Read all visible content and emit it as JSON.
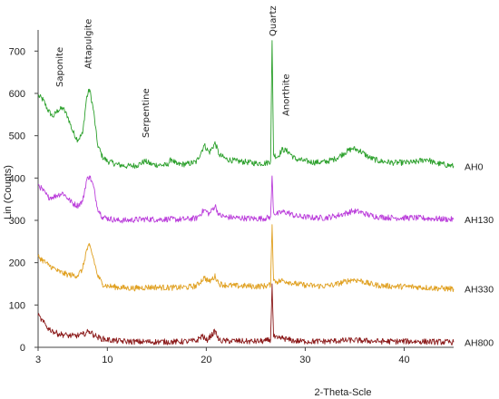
{
  "chart_data": {
    "type": "line",
    "xlabel": "2-Theta-Scle",
    "ylabel": "Lin (Counts)",
    "xlim": [
      3,
      45
    ],
    "ylim": [
      0,
      750
    ],
    "x_ticks": [
      "3",
      "10",
      "20",
      "30",
      "40"
    ],
    "y_ticks": [
      "0",
      "100",
      "200",
      "300",
      "400",
      "500",
      "600",
      "700"
    ],
    "grid": false,
    "series": [
      {
        "name": "AH0",
        "color": "#2ca02c",
        "points": [
          [
            3,
            595
          ],
          [
            3.5,
            585
          ],
          [
            4,
            560
          ],
          [
            4.5,
            545
          ],
          [
            5,
            560
          ],
          [
            5.5,
            565
          ],
          [
            6,
            545
          ],
          [
            6.5,
            510
          ],
          [
            7,
            490
          ],
          [
            7.5,
            505
          ],
          [
            7.9,
            590
          ],
          [
            8.2,
            610
          ],
          [
            8.6,
            560
          ],
          [
            9,
            480
          ],
          [
            9.5,
            450
          ],
          [
            10,
            440
          ],
          [
            11,
            432
          ],
          [
            12,
            428
          ],
          [
            13,
            430
          ],
          [
            13.8,
            440
          ],
          [
            14.5,
            432
          ],
          [
            16,
            430
          ],
          [
            16.5,
            445
          ],
          [
            17,
            432
          ],
          [
            18,
            433
          ],
          [
            19,
            438
          ],
          [
            19.8,
            478
          ],
          [
            20.3,
            460
          ],
          [
            20.9,
            483
          ],
          [
            21.3,
            455
          ],
          [
            22,
            445
          ],
          [
            23,
            440
          ],
          [
            24,
            438
          ],
          [
            25,
            435
          ],
          [
            26,
            435
          ],
          [
            26.5,
            440
          ],
          [
            26.65,
            725
          ],
          [
            26.8,
            455
          ],
          [
            27.2,
            450
          ],
          [
            27.7,
            468
          ],
          [
            28.3,
            462
          ],
          [
            29,
            445
          ],
          [
            30,
            440
          ],
          [
            31,
            437
          ],
          [
            32,
            438
          ],
          [
            33,
            445
          ],
          [
            34,
            460
          ],
          [
            34.8,
            470
          ],
          [
            35.5,
            465
          ],
          [
            36.5,
            448
          ],
          [
            37.5,
            440
          ],
          [
            39,
            436
          ],
          [
            41,
            437
          ],
          [
            42.3,
            445
          ],
          [
            43,
            436
          ],
          [
            45,
            428
          ]
        ]
      },
      {
        "name": "AH130",
        "color": "#bb3fdb",
        "points": [
          [
            3,
            385
          ],
          [
            3.5,
            370
          ],
          [
            4,
            355
          ],
          [
            4.5,
            355
          ],
          [
            5,
            360
          ],
          [
            5.5,
            365
          ],
          [
            6,
            352
          ],
          [
            6.5,
            340
          ],
          [
            7,
            335
          ],
          [
            7.5,
            345
          ],
          [
            7.9,
            395
          ],
          [
            8.2,
            405
          ],
          [
            8.6,
            380
          ],
          [
            9,
            330
          ],
          [
            9.5,
            308
          ],
          [
            10,
            305
          ],
          [
            11,
            300
          ],
          [
            12,
            300
          ],
          [
            13,
            302
          ],
          [
            14,
            303
          ],
          [
            15,
            302
          ],
          [
            16,
            303
          ],
          [
            17,
            302
          ],
          [
            18,
            303
          ],
          [
            19,
            305
          ],
          [
            19.8,
            325
          ],
          [
            20.3,
            315
          ],
          [
            20.9,
            335
          ],
          [
            21.3,
            312
          ],
          [
            22,
            308
          ],
          [
            23,
            306
          ],
          [
            24,
            305
          ],
          [
            25,
            304
          ],
          [
            26,
            305
          ],
          [
            26.5,
            308
          ],
          [
            26.65,
            405
          ],
          [
            26.8,
            318
          ],
          [
            27.2,
            315
          ],
          [
            27.7,
            320
          ],
          [
            28.3,
            318
          ],
          [
            29,
            310
          ],
          [
            30,
            308
          ],
          [
            31,
            306
          ],
          [
            32,
            306
          ],
          [
            33,
            310
          ],
          [
            34,
            316
          ],
          [
            34.8,
            322
          ],
          [
            35.5,
            320
          ],
          [
            36.5,
            312
          ],
          [
            37.5,
            308
          ],
          [
            39,
            306
          ],
          [
            41,
            306
          ],
          [
            43,
            304
          ],
          [
            45,
            302
          ]
        ]
      },
      {
        "name": "AH330",
        "color": "#e0a020",
        "points": [
          [
            3,
            215
          ],
          [
            3.5,
            205
          ],
          [
            4,
            195
          ],
          [
            4.5,
            188
          ],
          [
            5,
            180
          ],
          [
            5.5,
            175
          ],
          [
            6,
            172
          ],
          [
            6.5,
            170
          ],
          [
            7,
            170
          ],
          [
            7.5,
            185
          ],
          [
            7.9,
            230
          ],
          [
            8.2,
            240
          ],
          [
            8.6,
            210
          ],
          [
            9,
            170
          ],
          [
            9.5,
            150
          ],
          [
            10,
            145
          ],
          [
            11,
            142
          ],
          [
            12,
            140
          ],
          [
            13,
            140
          ],
          [
            14,
            142
          ],
          [
            15,
            142
          ],
          [
            16,
            141
          ],
          [
            17,
            141
          ],
          [
            18,
            142
          ],
          [
            19,
            145
          ],
          [
            19.8,
            165
          ],
          [
            20.3,
            155
          ],
          [
            20.9,
            168
          ],
          [
            21.3,
            150
          ],
          [
            22,
            147
          ],
          [
            23,
            145
          ],
          [
            24,
            145
          ],
          [
            25,
            144
          ],
          [
            26,
            145
          ],
          [
            26.5,
            148
          ],
          [
            26.65,
            290
          ],
          [
            26.8,
            158
          ],
          [
            27.2,
            155
          ],
          [
            27.7,
            158
          ],
          [
            28.3,
            155
          ],
          [
            29,
            150
          ],
          [
            30,
            147
          ],
          [
            31,
            145
          ],
          [
            32,
            145
          ],
          [
            33,
            148
          ],
          [
            34,
            155
          ],
          [
            34.8,
            160
          ],
          [
            35.5,
            158
          ],
          [
            36.5,
            150
          ],
          [
            37.5,
            146
          ],
          [
            39,
            144
          ],
          [
            41,
            143
          ],
          [
            43,
            140
          ],
          [
            45,
            138
          ]
        ]
      },
      {
        "name": "AH800",
        "color": "#8b1a1a",
        "points": [
          [
            3,
            75
          ],
          [
            3.5,
            60
          ],
          [
            4,
            45
          ],
          [
            4.5,
            38
          ],
          [
            5,
            32
          ],
          [
            5.5,
            30
          ],
          [
            6,
            28
          ],
          [
            6.5,
            27
          ],
          [
            7,
            28
          ],
          [
            7.5,
            30
          ],
          [
            7.9,
            35
          ],
          [
            8.2,
            38
          ],
          [
            8.6,
            30
          ],
          [
            9,
            24
          ],
          [
            9.5,
            20
          ],
          [
            10,
            18
          ],
          [
            11,
            15
          ],
          [
            12,
            14
          ],
          [
            13,
            13
          ],
          [
            14,
            13
          ],
          [
            15,
            13
          ],
          [
            16,
            13
          ],
          [
            17,
            13
          ],
          [
            18,
            14
          ],
          [
            19,
            15
          ],
          [
            19.6,
            28
          ],
          [
            20,
            16
          ],
          [
            20.9,
            38
          ],
          [
            21.3,
            16
          ],
          [
            22,
            15
          ],
          [
            23,
            15
          ],
          [
            24,
            14
          ],
          [
            25,
            14
          ],
          [
            26,
            15
          ],
          [
            26.5,
            18
          ],
          [
            26.65,
            150
          ],
          [
            26.8,
            25
          ],
          [
            27.2,
            20
          ],
          [
            27.7,
            22
          ],
          [
            28.3,
            18
          ],
          [
            29,
            15
          ],
          [
            30,
            14
          ],
          [
            31,
            14
          ],
          [
            32,
            14
          ],
          [
            33,
            15
          ],
          [
            34,
            16
          ],
          [
            34.8,
            17
          ],
          [
            35.5,
            16
          ],
          [
            36.5,
            15
          ],
          [
            37.5,
            14
          ],
          [
            39,
            14
          ],
          [
            41,
            14
          ],
          [
            43,
            13
          ],
          [
            45,
            12
          ]
        ]
      }
    ],
    "annotations": [
      {
        "text": "Saponite",
        "x": 5.1
      },
      {
        "text": "Attapulgite",
        "x": 8.0
      },
      {
        "text": "Serpentine",
        "x": 13.8
      },
      {
        "text": "Quartz",
        "x": 26.65
      },
      {
        "text": "Anorthite",
        "x": 28.0
      }
    ]
  }
}
